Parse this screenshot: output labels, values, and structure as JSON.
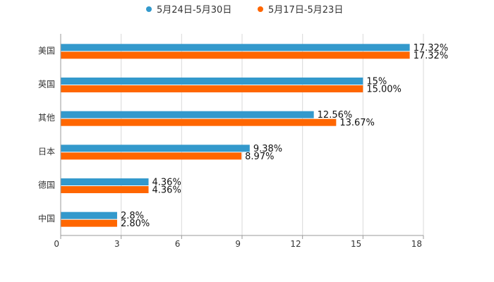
{
  "chart_data": {
    "type": "bar",
    "orientation": "horizontal",
    "title": "",
    "xlabel": "",
    "ylabel": "",
    "xlim": [
      0,
      18
    ],
    "xticks": [
      "0",
      "3",
      "6",
      "9",
      "12",
      "15",
      "18"
    ],
    "grid": true,
    "legend_position": "top-center",
    "categories": [
      "美国",
      "英国",
      "其他",
      "日本",
      "德国",
      "中国"
    ],
    "series": [
      {
        "name": "5月24日-5月30日",
        "color": "#3399cc",
        "values": [
          17.32,
          15,
          12.56,
          9.38,
          4.36,
          2.8
        ],
        "labels": [
          "17.32%",
          "15%",
          "12.56%",
          "9.38%",
          "4.36%",
          "2.8%"
        ]
      },
      {
        "name": "5月17日-5月23日",
        "color": "#ff6600",
        "values": [
          17.32,
          15.0,
          13.67,
          8.97,
          4.36,
          2.8
        ],
        "labels": [
          "17.32%",
          "15.00%",
          "13.67%",
          "8.97%",
          "4.36%",
          "2.80%"
        ]
      }
    ]
  }
}
